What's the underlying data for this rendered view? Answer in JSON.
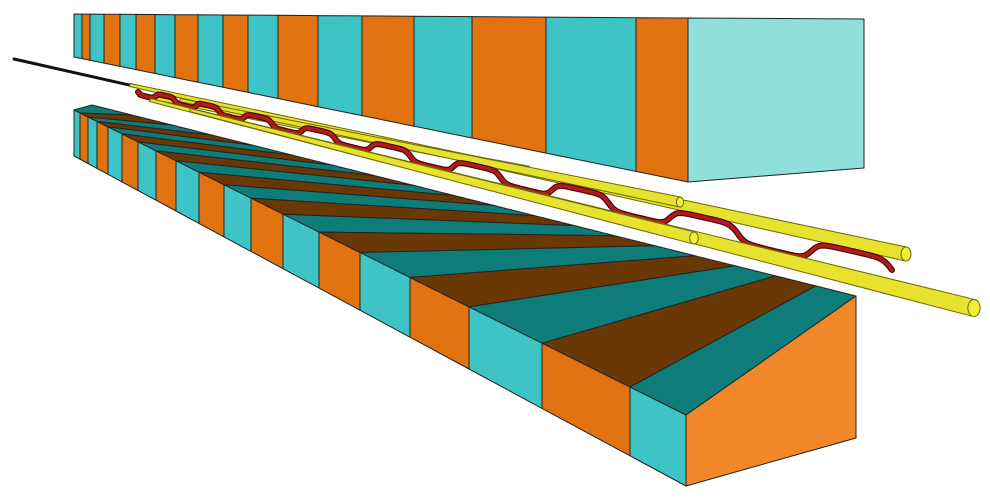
{
  "colors": {
    "background": "#ffffff",
    "cyan_front": "#3ec4c4",
    "cyan_top": "#0e7c79",
    "cyan_end": "#8fe0da",
    "orange_front": "#e0720f",
    "orange_top": "#6a3804",
    "orange_end": "#f0882a",
    "edge": "#222222",
    "rod_fill": "#e6e22e",
    "rod_end": "#f2ee3a",
    "rod_edge": "#6d6a08",
    "beam": "#b31b1b",
    "beam_edge": "#4a0505",
    "beamline": "#111111"
  },
  "icons": [
    "upper-magnet-array",
    "lower-magnet-array",
    "focusing-rods",
    "electron-beam-path",
    "beam-axis-line"
  ]
}
